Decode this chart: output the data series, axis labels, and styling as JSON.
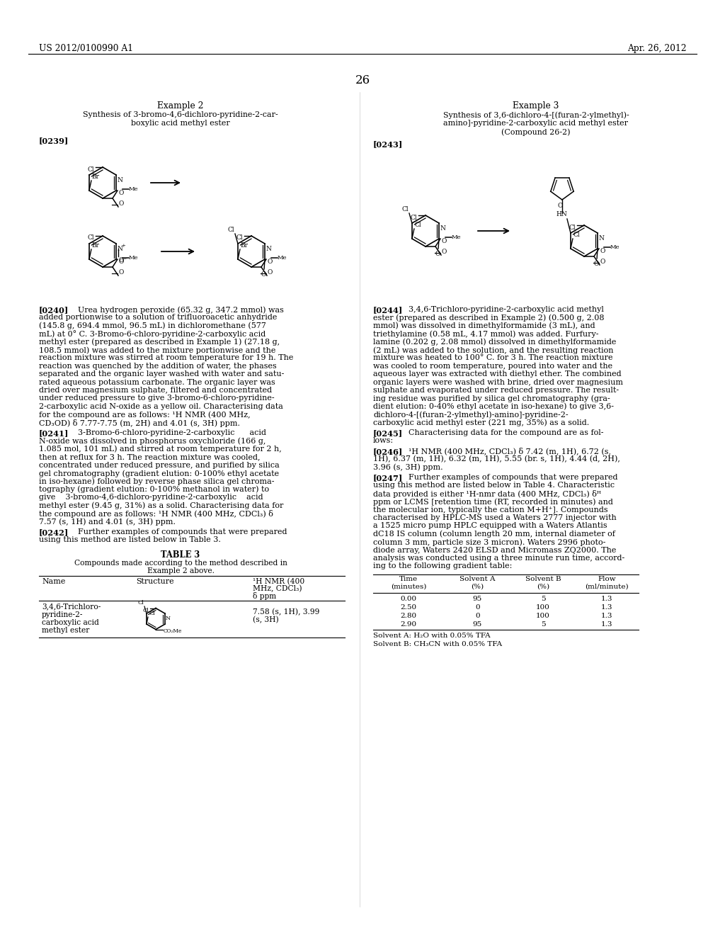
{
  "page_number": "26",
  "header_left": "US 2012/0100990 A1",
  "header_right": "Apr. 26, 2012",
  "background_color": "#ffffff",
  "left_example_title": "Example 2",
  "left_example_sub1": "Synthesis of 3-bromo-4,6-dichloro-pyridine-2-car-",
  "left_example_sub2": "boxylic acid methyl ester",
  "right_example_title": "Example 3",
  "right_example_sub1": "Synthesis of 3,6-dichloro-4-[(furan-2-ylmethyl)-",
  "right_example_sub2": "amino]-pyridine-2-carboxylic acid methyl ester",
  "right_example_sub3": "(Compound 26-2)",
  "label_0239": "[0239]",
  "label_0243": "[0243]",
  "label_0240": "[0240]",
  "label_0241": "[0241]",
  "label_0242": "[0242]",
  "label_0244": "[0244]",
  "label_0245": "[0245]",
  "label_0246": "[0246]",
  "label_0247": "[0247]",
  "p240": "Urea hydrogen peroxide (65.32 g, 347.2 mmol) was added portionwise to a solution of trifluoroacetic anhydride (145.8 g, 694.4 mmol, 96.5 mL) in dichloromethane (577 mL) at 0° C. 3-Bromo-6-chloro-pyridine-2-carboxylic acid methyl ester (prepared as described in Example 1) (27.18 g, 108.5 mmol) was added to the mixture portionwise and the reaction mixture was stirred at room temperature for 19 h. The reaction was quenched by the addition of water, the phases separated and the organic layer washed with water and satu-rated aqueous potassium carbonate. The organic layer was dried over magnesium sulphate, filtered and concentrated under reduced pressure to give 3-bromo-6-chloro-pyridine-2-carboxylic acid N-oxide as a yellow oil. Characterising data for the compound are as follows: ¹H NMR (400 MHz, CD₃OD) δ 7.77-7.75 (m, 2H) and 4.01 (s, 3H) ppm.",
  "p241_title": "3-Bromo-6-chloro-pyridine-2-carboxylic      acid",
  "p241": "N-oxide was dissolved in phosphorus oxychloride (166 g, 1.085 mol, 101 mL) and stirred at room temperature for 2 h, then at reflux for 3 h. The reaction mixture was cooled, concentrated under reduced pressure, and purified by silica gel chromatography (gradient elution: 0-100% ethyl acetate in iso-hexane) followed by reverse phase silica gel chroma-tography (gradient elution: 0-100% methanol in water) to give    3-bromo-4,6-dichloro-pyridine-2-carboxylic    acid methyl ester (9.45 g, 31%) as a solid. Characterising data for the compound are as follows: ¹H NMR (400 MHz, CDCl₃) δ 7.57 (s, 1H) and 4.01 (s, 3H) ppm.",
  "p242": "Further examples of compounds that were prepared using this method are listed below in Table 3.",
  "table3_title": "TABLE 3",
  "table3_sub1": "Compounds made according to the method described in",
  "table3_sub2": "Example 2 above.",
  "table3_h1": "Name",
  "table3_h2": "Structure",
  "table3_h3": "¹H NMR (400",
  "table3_h3b": "MHz, CDCl₃)",
  "table3_h3c": "δ ppm",
  "table3_r1c1a": "3,4,6-Trichloro-",
  "table3_r1c1b": "pyridine-2-",
  "table3_r1c1c": "carboxylic acid",
  "table3_r1c1d": "methyl ester",
  "table3_r1c3a": "7.58 (s, 1H), 3.99",
  "table3_r1c3b": "(s, 3H)",
  "p244": "3,4,6-Trichloro-pyridine-2-carboxylic acid methyl ester (prepared as described in Example 2) (0.500 g, 2.08 mmol) was dissolved in dimethylformamide (3 mL), and triethylamine (0.58 mL, 4.17 mmol) was added. Furfury-lamine (0.202 g, 2.08 mmol) dissolved in dimethylformamide (2 mL) was added to the solution, and the resulting reaction mixture was heated to 100° C. for 3 h. The reaction mixture was cooled to room temperature, poured into water and the aqueous layer was extracted with diethyl ether. The combined organic layers were washed with brine, dried over magnesium sulphate and evaporated under reduced pressure. The result-ing residue was purified by silica gel chromatography (gra-dient elution: 0-40% ethyl acetate in iso-hexane) to give 3,6-dichloro-4-[(furan-2-ylmethyl)-amino]-pyridine-2-carboxylic acid methyl ester (221 mg, 35%) as a solid.",
  "p245": "Characterising data for the compound are as fol-lows:",
  "p246": "¹H NMR (400 MHz, CDCl₃) δ 7.42 (m, 1H), 6.72 (s, 1H), 6.37 (m, 1H), 6.32 (m, 1H), 5.55 (br. s, 1H), 4.44 (d, 2H), 3.96 (s, 3H) ppm.",
  "p247": "Further examples of compounds that were prepared using this method are listed below in Table 4. Characteristic data provided is either ¹H-nmr data (400 MHz, CDCl₃) δH ppm or LCMS [retention time (RT, recorded in minutes) and the molecular ion, typically the cation M+H⁺]. Compounds characterised by HPLC-MS used a Waters 2777 injector with a 1525 micro pump HPLC equipped with a Waters Atlantis dC18 IS column (column length 20 mm, internal diameter of column 3 mm, particle size 3 micron). Waters 2996 photo-diode array, Waters 2420 ELSD and Micromass ZQ2000. The analysis was conducted using a three minute run time, accord-ing to the following gradient table:",
  "grad_h": [
    "Time\n(minutes)",
    "Solvent A\n(%)",
    "Solvent B\n(%)",
    "Flow\n(ml/minute)"
  ],
  "grad_rows": [
    [
      "0.00",
      "95",
      "5",
      "1.3"
    ],
    [
      "2.50",
      "0",
      "100",
      "1.3"
    ],
    [
      "2.80",
      "0",
      "100",
      "1.3"
    ],
    [
      "2.90",
      "95",
      "5",
      "1.3"
    ]
  ],
  "grad_fn1": "Solvent A: H₂O with 0.05% TFA",
  "grad_fn2": "Solvent B: CH₃CN with 0.05% TFA"
}
